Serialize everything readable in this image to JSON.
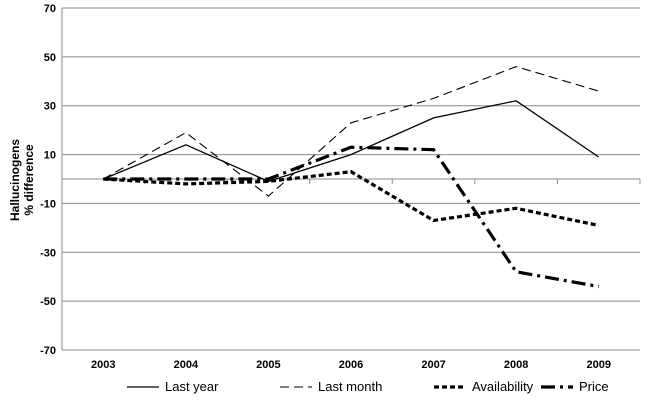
{
  "chart_data": {
    "type": "line",
    "title": "",
    "xlabel": "",
    "ylabel_lines": [
      "Hallucinogens",
      "% difference"
    ],
    "x": [
      "2003",
      "2004",
      "2005",
      "2006",
      "2007",
      "2008",
      "2009"
    ],
    "ylim": [
      -70,
      70
    ],
    "yticks": [
      70,
      50,
      30,
      10,
      -10,
      -30,
      -50,
      -70
    ],
    "grid": "horizontal",
    "legend_position": "bottom",
    "series": [
      {
        "name": "Last year",
        "values": [
          0,
          14,
          -1,
          10,
          25,
          32,
          9
        ],
        "style": "solid"
      },
      {
        "name": "Last month",
        "values": [
          0,
          19,
          -7,
          23,
          33,
          46,
          36
        ],
        "style": "dashed"
      },
      {
        "name": "Availability",
        "values": [
          0,
          -2,
          -1,
          3,
          -17,
          -12,
          -19
        ],
        "style": "dotted-thick"
      },
      {
        "name": "Price",
        "values": [
          0,
          0,
          0,
          13,
          12,
          -38,
          -44
        ],
        "style": "dashdot-thick"
      }
    ],
    "line_color": "#000000",
    "grid_color": "#888888"
  }
}
